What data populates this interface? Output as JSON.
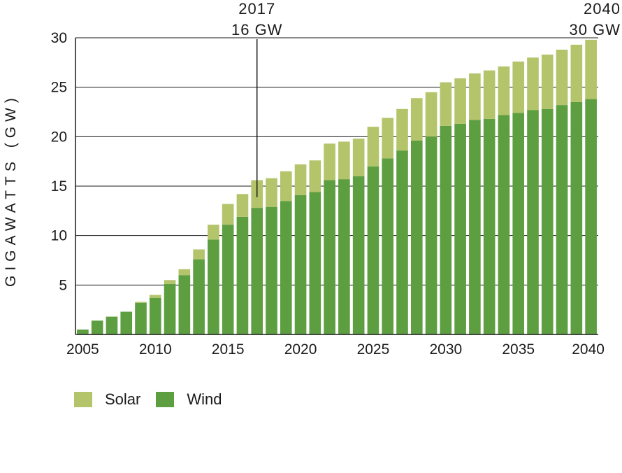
{
  "chart_data": {
    "type": "bar",
    "stacked": true,
    "title": "",
    "xlabel": "",
    "ylabel": "GIGAWATTS (GW)",
    "ylim": [
      0,
      30
    ],
    "yticks": [
      5,
      10,
      15,
      20,
      25,
      30
    ],
    "xticks": [
      2005,
      2010,
      2015,
      2020,
      2025,
      2030,
      2035,
      2040
    ],
    "grid": true,
    "legend_position": "bottom-left",
    "categories": [
      2005,
      2006,
      2007,
      2008,
      2009,
      2010,
      2011,
      2012,
      2013,
      2014,
      2015,
      2016,
      2017,
      2018,
      2019,
      2020,
      2021,
      2022,
      2023,
      2024,
      2025,
      2026,
      2027,
      2028,
      2029,
      2030,
      2031,
      2032,
      2033,
      2034,
      2035,
      2036,
      2037,
      2038,
      2039,
      2040
    ],
    "series": [
      {
        "name": "Wind",
        "color": "#5d9e41",
        "values": [
          0.5,
          1.4,
          1.8,
          2.3,
          3.2,
          3.7,
          5.1,
          6.0,
          7.6,
          9.6,
          11.1,
          11.9,
          12.8,
          12.9,
          13.5,
          14.1,
          14.4,
          15.6,
          15.7,
          16.0,
          17.0,
          17.8,
          18.6,
          19.6,
          20.0,
          21.1,
          21.3,
          21.7,
          21.8,
          22.2,
          22.4,
          22.7,
          22.8,
          23.2,
          23.5,
          23.8
        ]
      },
      {
        "name": "Solar",
        "color": "#b4c46a",
        "values": [
          0.0,
          0.0,
          0.0,
          0.0,
          0.1,
          0.3,
          0.4,
          0.6,
          1.0,
          1.5,
          2.1,
          2.3,
          2.8,
          2.9,
          3.0,
          3.1,
          3.2,
          3.7,
          3.8,
          3.8,
          4.0,
          4.1,
          4.2,
          4.3,
          4.5,
          4.4,
          4.6,
          4.7,
          4.9,
          4.9,
          5.2,
          5.3,
          5.5,
          5.6,
          5.8,
          6.0
        ]
      }
    ],
    "annotations": [
      {
        "year": 2017,
        "line1": "2017",
        "line2": "16 GW",
        "value": 16
      },
      {
        "year": 2040,
        "line1": "2040",
        "line2": "30 GW",
        "value": 30
      }
    ]
  },
  "legend": {
    "solar_label": "Solar",
    "wind_label": "Wind",
    "solar_color": "#b4c46a",
    "wind_color": "#5d9e41"
  }
}
